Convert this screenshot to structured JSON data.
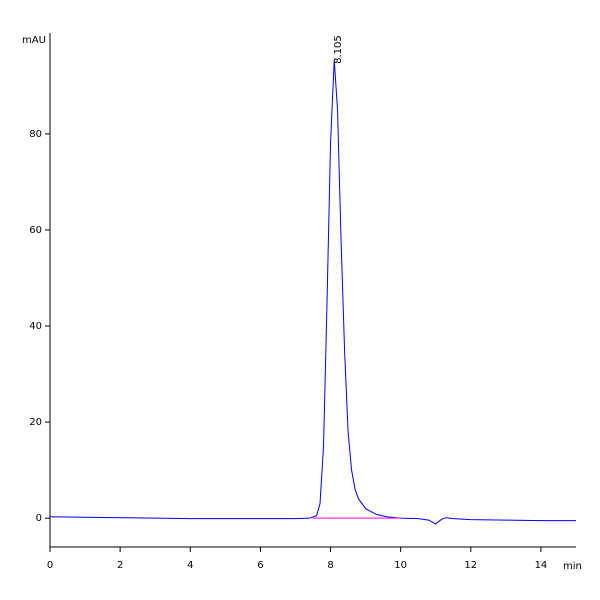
{
  "chart_data": {
    "type": "line",
    "x_label": "min",
    "y_label": "mAU",
    "series": [
      {
        "color": "#0000ff",
        "x": [
          0,
          1,
          2,
          3,
          4,
          5,
          6,
          7,
          7.4,
          7.6,
          7.7,
          7.8,
          7.9,
          8.0,
          8.105,
          8.2,
          8.3,
          8.4,
          8.5,
          8.6,
          8.7,
          8.8,
          9.0,
          9.3,
          9.6,
          10,
          10.5,
          10.8,
          11.0,
          11.1,
          11.2,
          11.3,
          11.5,
          12,
          13,
          14,
          15
        ],
        "values": [
          0.3,
          0.2,
          0.1,
          0.0,
          -0.1,
          -0.1,
          -0.1,
          -0.1,
          0,
          0.5,
          3,
          15,
          45,
          78,
          95.4,
          85,
          58,
          35,
          18,
          10,
          6,
          4,
          2,
          0.8,
          0.3,
          0,
          -0.1,
          -0.4,
          -1.2,
          -0.6,
          -0.1,
          0.1,
          -0.1,
          -0.3,
          -0.4,
          -0.5,
          -0.5
        ]
      },
      {
        "color": "#ff00ff",
        "x": [
          7.5,
          10
        ],
        "values": [
          0,
          0
        ]
      }
    ],
    "annotations": [
      {
        "label": "8.105",
        "x": 8.105,
        "y": 95.4
      }
    ],
    "xlim": [
      0,
      15
    ],
    "xticks": [
      0,
      2,
      4,
      6,
      8,
      10,
      12,
      14
    ],
    "ylim": [
      -6,
      101
    ],
    "yticks": [
      0,
      20,
      40,
      60,
      80
    ]
  }
}
